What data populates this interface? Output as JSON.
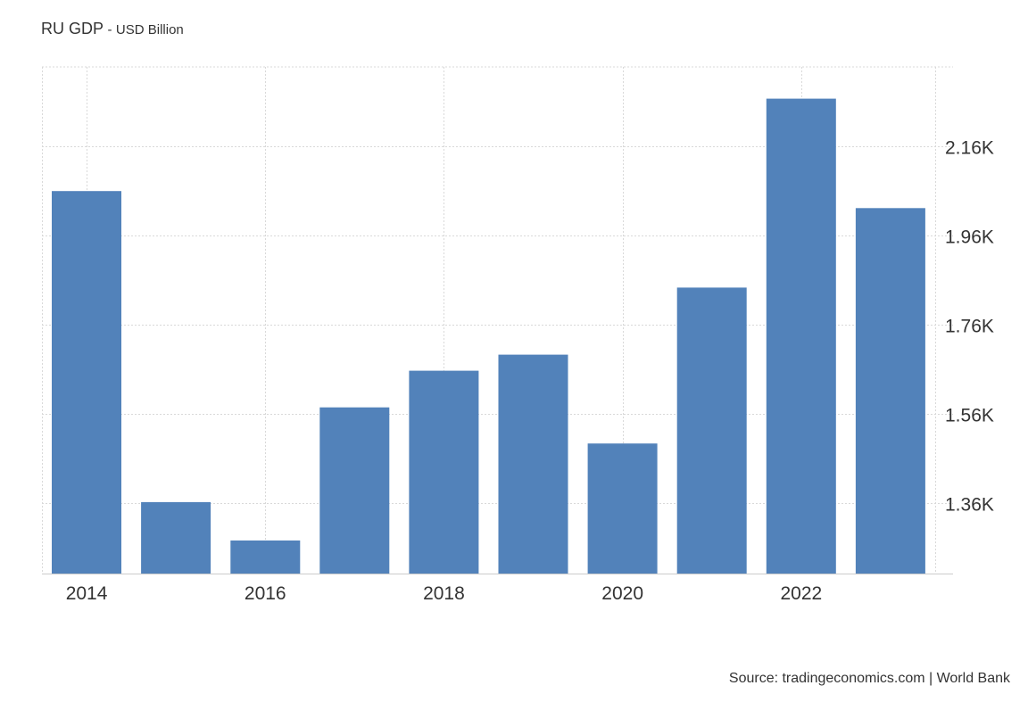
{
  "chart_data": {
    "type": "bar",
    "title": "RU GDP",
    "subtitle": "USD Billion",
    "categories": [
      "2014",
      "2015",
      "2016",
      "2017",
      "2018",
      "2019",
      "2020",
      "2021",
      "2022",
      "2023"
    ],
    "values": [
      2059,
      1363,
      1277,
      1575,
      1657,
      1693,
      1494,
      1843,
      2266,
      2021
    ],
    "x_tick_labels": [
      "2014",
      "2016",
      "2018",
      "2020",
      "2022"
    ],
    "y_ticks": [
      {
        "value": 1360,
        "label": "1.36K"
      },
      {
        "value": 1560,
        "label": "1.56K"
      },
      {
        "value": 1760,
        "label": "1.76K"
      },
      {
        "value": 1960,
        "label": "1.96K"
      },
      {
        "value": 2160,
        "label": "2.16K"
      }
    ],
    "ylim": [
      1203,
      2337
    ],
    "grid": true,
    "y_axis_position": "right",
    "bar_color": "#5282ba",
    "grid_color": "#d9d9d9",
    "axis_color": "#cccccc"
  },
  "source_text": "Source: tradingeconomics.com | World Bank",
  "title_separator": "-"
}
